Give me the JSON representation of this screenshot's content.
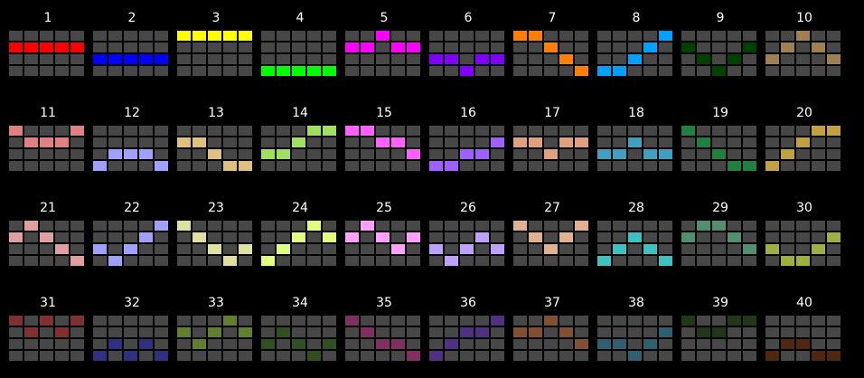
{
  "base_color": "#474747",
  "patterns": [
    {
      "number": "1",
      "color": "#ff0000",
      "cells": [
        [
          1,
          0
        ],
        [
          1,
          1
        ],
        [
          1,
          2
        ],
        [
          1,
          3
        ],
        [
          1,
          4
        ]
      ]
    },
    {
      "number": "2",
      "color": "#0000ff",
      "cells": [
        [
          2,
          0
        ],
        [
          2,
          1
        ],
        [
          2,
          2
        ],
        [
          2,
          3
        ],
        [
          2,
          4
        ]
      ]
    },
    {
      "number": "3",
      "color": "#ffff00",
      "cells": [
        [
          0,
          0
        ],
        [
          0,
          1
        ],
        [
          0,
          2
        ],
        [
          0,
          3
        ],
        [
          0,
          4
        ]
      ]
    },
    {
      "number": "4",
      "color": "#00ff00",
      "cells": [
        [
          3,
          0
        ],
        [
          3,
          1
        ],
        [
          3,
          2
        ],
        [
          3,
          3
        ],
        [
          3,
          4
        ]
      ]
    },
    {
      "number": "5",
      "color": "#ff00ff",
      "cells": [
        [
          0,
          2
        ],
        [
          1,
          0
        ],
        [
          1,
          1
        ],
        [
          1,
          3
        ],
        [
          1,
          4
        ]
      ]
    },
    {
      "number": "6",
      "color": "#8000ff",
      "cells": [
        [
          2,
          0
        ],
        [
          2,
          1
        ],
        [
          2,
          3
        ],
        [
          2,
          4
        ],
        [
          3,
          2
        ]
      ]
    },
    {
      "number": "7",
      "color": "#ff8000",
      "cells": [
        [
          0,
          0
        ],
        [
          0,
          1
        ],
        [
          1,
          2
        ],
        [
          2,
          3
        ],
        [
          3,
          4
        ]
      ]
    },
    {
      "number": "8",
      "color": "#00a0ff",
      "cells": [
        [
          0,
          4
        ],
        [
          1,
          3
        ],
        [
          2,
          2
        ],
        [
          3,
          0
        ],
        [
          3,
          1
        ]
      ]
    },
    {
      "number": "9",
      "color": "#004000",
      "cells": [
        [
          1,
          0
        ],
        [
          1,
          4
        ],
        [
          2,
          1
        ],
        [
          2,
          3
        ],
        [
          3,
          2
        ]
      ]
    },
    {
      "number": "10",
      "color": "#a08050",
      "cells": [
        [
          0,
          2
        ],
        [
          1,
          1
        ],
        [
          1,
          3
        ],
        [
          2,
          0
        ],
        [
          2,
          4
        ]
      ]
    },
    {
      "number": "11",
      "color": "#e08080",
      "cells": [
        [
          0,
          0
        ],
        [
          0,
          4
        ],
        [
          1,
          1
        ],
        [
          1,
          2
        ],
        [
          1,
          3
        ]
      ]
    },
    {
      "number": "12",
      "color": "#a0a0ff",
      "cells": [
        [
          2,
          1
        ],
        [
          2,
          2
        ],
        [
          2,
          3
        ],
        [
          3,
          0
        ],
        [
          3,
          4
        ]
      ]
    },
    {
      "number": "13",
      "color": "#e0c080",
      "cells": [
        [
          1,
          0
        ],
        [
          1,
          1
        ],
        [
          2,
          2
        ],
        [
          3,
          3
        ],
        [
          3,
          4
        ]
      ]
    },
    {
      "number": "14",
      "color": "#a0e060",
      "cells": [
        [
          0,
          3
        ],
        [
          0,
          4
        ],
        [
          1,
          2
        ],
        [
          2,
          0
        ],
        [
          2,
          1
        ]
      ]
    },
    {
      "number": "15",
      "color": "#ff60ff",
      "cells": [
        [
          0,
          0
        ],
        [
          0,
          1
        ],
        [
          1,
          2
        ],
        [
          1,
          3
        ],
        [
          2,
          4
        ]
      ]
    },
    {
      "number": "16",
      "color": "#a060ff",
      "cells": [
        [
          1,
          4
        ],
        [
          2,
          2
        ],
        [
          2,
          3
        ],
        [
          3,
          0
        ],
        [
          3,
          1
        ]
      ]
    },
    {
      "number": "17",
      "color": "#e0a080",
      "cells": [
        [
          1,
          0
        ],
        [
          1,
          1
        ],
        [
          1,
          3
        ],
        [
          1,
          4
        ],
        [
          2,
          2
        ]
      ]
    },
    {
      "number": "18",
      "color": "#40a0c0",
      "cells": [
        [
          1,
          2
        ],
        [
          2,
          0
        ],
        [
          2,
          1
        ],
        [
          2,
          3
        ],
        [
          2,
          4
        ]
      ]
    },
    {
      "number": "19",
      "color": "#208040",
      "cells": [
        [
          0,
          0
        ],
        [
          1,
          1
        ],
        [
          2,
          2
        ],
        [
          3,
          3
        ],
        [
          3,
          4
        ]
      ]
    },
    {
      "number": "20",
      "color": "#c0a040",
      "cells": [
        [
          0,
          3
        ],
        [
          0,
          4
        ],
        [
          1,
          2
        ],
        [
          2,
          1
        ],
        [
          3,
          0
        ]
      ]
    },
    {
      "number": "21",
      "color": "#e0a0a0",
      "cells": [
        [
          0,
          1
        ],
        [
          1,
          0
        ],
        [
          1,
          2
        ],
        [
          2,
          3
        ],
        [
          3,
          4
        ]
      ]
    },
    {
      "number": "22",
      "color": "#a0a0ff",
      "cells": [
        [
          0,
          4
        ],
        [
          1,
          3
        ],
        [
          2,
          0
        ],
        [
          2,
          2
        ],
        [
          3,
          1
        ]
      ]
    },
    {
      "number": "23",
      "color": "#e0e0a0",
      "cells": [
        [
          0,
          0
        ],
        [
          1,
          1
        ],
        [
          2,
          2
        ],
        [
          2,
          4
        ],
        [
          3,
          3
        ]
      ]
    },
    {
      "number": "24",
      "color": "#e0ff80",
      "cells": [
        [
          0,
          3
        ],
        [
          1,
          2
        ],
        [
          1,
          4
        ],
        [
          2,
          1
        ],
        [
          3,
          0
        ]
      ]
    },
    {
      "number": "25",
      "color": "#ffa0ff",
      "cells": [
        [
          0,
          1
        ],
        [
          1,
          0
        ],
        [
          1,
          2
        ],
        [
          1,
          4
        ],
        [
          2,
          3
        ]
      ]
    },
    {
      "number": "26",
      "color": "#c0a0ff",
      "cells": [
        [
          1,
          3
        ],
        [
          2,
          0
        ],
        [
          2,
          2
        ],
        [
          2,
          4
        ],
        [
          3,
          1
        ]
      ]
    },
    {
      "number": "27",
      "color": "#e0b090",
      "cells": [
        [
          0,
          0
        ],
        [
          0,
          4
        ],
        [
          1,
          1
        ],
        [
          1,
          3
        ],
        [
          2,
          2
        ]
      ]
    },
    {
      "number": "28",
      "color": "#40c0c0",
      "cells": [
        [
          1,
          2
        ],
        [
          2,
          1
        ],
        [
          2,
          3
        ],
        [
          3,
          0
        ],
        [
          3,
          4
        ]
      ]
    },
    {
      "number": "29",
      "color": "#509070",
      "cells": [
        [
          0,
          1
        ],
        [
          0,
          2
        ],
        [
          1,
          0
        ],
        [
          1,
          3
        ],
        [
          2,
          4
        ]
      ]
    },
    {
      "number": "30",
      "color": "#a0b040",
      "cells": [
        [
          1,
          4
        ],
        [
          2,
          0
        ],
        [
          2,
          3
        ],
        [
          3,
          1
        ],
        [
          3,
          2
        ]
      ]
    },
    {
      "number": "31",
      "color": "#803030",
      "cells": [
        [
          0,
          0
        ],
        [
          0,
          2
        ],
        [
          0,
          4
        ],
        [
          1,
          1
        ],
        [
          1,
          3
        ]
      ]
    },
    {
      "number": "32",
      "color": "#303080",
      "cells": [
        [
          2,
          1
        ],
        [
          2,
          3
        ],
        [
          3,
          0
        ],
        [
          3,
          2
        ],
        [
          3,
          4
        ]
      ]
    },
    {
      "number": "33",
      "color": "#608030",
      "cells": [
        [
          0,
          3
        ],
        [
          1,
          0
        ],
        [
          1,
          2
        ],
        [
          1,
          4
        ],
        [
          2,
          1
        ]
      ]
    },
    {
      "number": "34",
      "color": "#305020",
      "cells": [
        [
          1,
          1
        ],
        [
          2,
          0
        ],
        [
          2,
          2
        ],
        [
          2,
          4
        ],
        [
          3,
          3
        ]
      ]
    },
    {
      "number": "35",
      "color": "#803060",
      "cells": [
        [
          0,
          0
        ],
        [
          1,
          1
        ],
        [
          2,
          2
        ],
        [
          2,
          3
        ],
        [
          3,
          4
        ]
      ]
    },
    {
      "number": "36",
      "color": "#503080",
      "cells": [
        [
          0,
          4
        ],
        [
          1,
          2
        ],
        [
          1,
          3
        ],
        [
          2,
          1
        ],
        [
          3,
          0
        ]
      ]
    },
    {
      "number": "37",
      "color": "#805030",
      "cells": [
        [
          0,
          2
        ],
        [
          1,
          0
        ],
        [
          1,
          1
        ],
        [
          1,
          3
        ],
        [
          2,
          4
        ]
      ]
    },
    {
      "number": "38",
      "color": "#306070",
      "cells": [
        [
          1,
          4
        ],
        [
          2,
          0
        ],
        [
          2,
          1
        ],
        [
          2,
          3
        ],
        [
          3,
          2
        ]
      ]
    },
    {
      "number": "39",
      "color": "#203818",
      "cells": [
        [
          0,
          0
        ],
        [
          0,
          3
        ],
        [
          0,
          4
        ],
        [
          1,
          1
        ],
        [
          1,
          2
        ]
      ]
    },
    {
      "number": "40",
      "color": "#502810",
      "cells": [
        [
          2,
          1
        ],
        [
          2,
          2
        ],
        [
          3,
          0
        ],
        [
          3,
          3
        ],
        [
          3,
          4
        ]
      ]
    }
  ]
}
